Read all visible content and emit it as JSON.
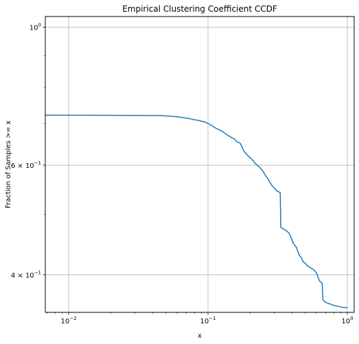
{
  "chart_data": {
    "type": "line",
    "title": "Empirical Clustering Coefficient CCDF",
    "xlabel": "x",
    "ylabel": "Fraction of Samples >= x",
    "x_scale": "log",
    "y_scale": "log",
    "xlim": [
      0.0068,
      1.12
    ],
    "ylim": [
      0.348,
      1.04
    ],
    "grid": true,
    "line_color": "#1f77b4",
    "x_ticks": [
      {
        "value": 0.01,
        "base": "10",
        "exp": "−2"
      },
      {
        "value": 0.1,
        "base": "10",
        "exp": "−1"
      },
      {
        "value": 1,
        "base": "10",
        "exp": "0"
      }
    ],
    "y_ticks": [
      {
        "value": 0.4,
        "prefix": "4 × 10",
        "exp": "−1"
      },
      {
        "value": 0.6,
        "prefix": "6 × 10",
        "exp": "−1"
      },
      {
        "value": 1.0,
        "prefix": "10",
        "exp": "0"
      }
    ],
    "y_minor_ticks": [
      0.5,
      0.7,
      0.8,
      0.9
    ],
    "series": [
      {
        "x": [
          0.0068,
          0.045,
          0.055,
          0.065,
          0.075,
          0.085,
          0.095,
          0.105,
          0.115,
          0.125,
          0.135,
          0.145,
          0.155,
          0.16,
          0.17,
          0.175,
          0.18,
          0.19,
          0.2,
          0.21,
          0.215,
          0.22,
          0.23,
          0.24,
          0.25,
          0.26,
          0.27,
          0.28,
          0.29,
          0.3,
          0.31,
          0.32,
          0.33,
          0.333,
          0.34,
          0.36,
          0.38,
          0.39,
          0.4,
          0.41,
          0.43,
          0.45,
          0.47,
          0.48,
          0.5,
          0.52,
          0.55,
          0.57,
          0.6,
          0.63,
          0.65,
          0.66,
          0.667,
          0.68,
          0.7,
          0.75,
          0.8,
          0.85,
          0.9,
          0.95,
          1.0
        ],
        "y": [
          0.722,
          0.721,
          0.719,
          0.716,
          0.712,
          0.708,
          0.704,
          0.696,
          0.687,
          0.681,
          0.673,
          0.666,
          0.661,
          0.655,
          0.651,
          0.643,
          0.633,
          0.624,
          0.617,
          0.611,
          0.606,
          0.603,
          0.598,
          0.592,
          0.585,
          0.576,
          0.57,
          0.562,
          0.555,
          0.551,
          0.546,
          0.544,
          0.542,
          0.477,
          0.475,
          0.472,
          0.467,
          0.462,
          0.455,
          0.449,
          0.443,
          0.431,
          0.425,
          0.42,
          0.417,
          0.413,
          0.41,
          0.408,
          0.403,
          0.391,
          0.389,
          0.387,
          0.365,
          0.363,
          0.361,
          0.359,
          0.357,
          0.356,
          0.355,
          0.354,
          0.354
        ]
      }
    ]
  }
}
